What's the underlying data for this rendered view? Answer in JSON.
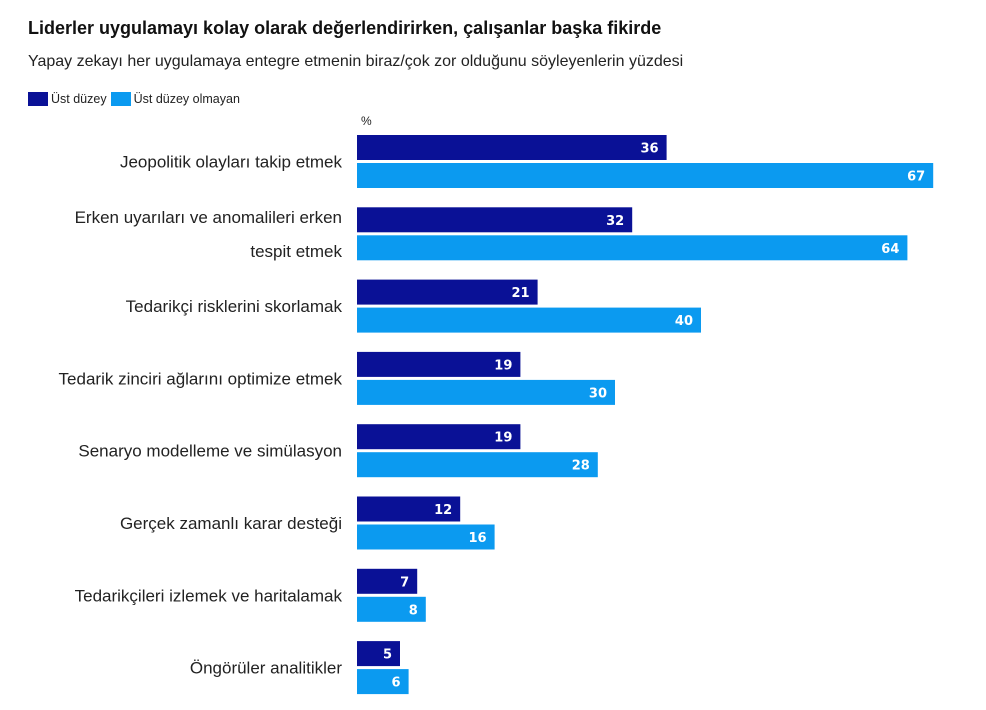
{
  "header": {
    "title": "Liderler uygulamayı kolay olarak değerlendirirken, çalışanlar başka fikirde",
    "subtitle": "Yapay zekayı her uygulamaya entegre etmenin biraz/çok zor olduğunu söyleyenlerin yüzdesi"
  },
  "legend": {
    "items": [
      {
        "label": "Üst düzey",
        "color": "#0a1196"
      },
      {
        "label": "Üst düzey olmayan",
        "color": "#0b9af0"
      }
    ]
  },
  "chart_data": {
    "type": "bar",
    "orientation": "horizontal",
    "title": "Liderler uygulamayı kolay olarak değerlendirirken, çalışanlar başka fikirde",
    "subtitle": "Yapay zekayı her uygulamaya entegre etmenin biraz/çok zor olduğunu söyleyenlerin yüzdesi",
    "unit_label": "%",
    "xlim": [
      0,
      70
    ],
    "grid": false,
    "legend_position": "top-left",
    "categories": [
      [
        "Jeopolitik olayları takip etmek"
      ],
      [
        "Erken uyarıları ve anomalileri erken",
        "tespit etmek"
      ],
      [
        "Tedarikçi risklerini skorlamak"
      ],
      [
        "Tedarik zinciri ağlarını optimize etmek"
      ],
      [
        "Senaryo modelleme ve simülasyon"
      ],
      [
        "Gerçek zamanlı karar desteği"
      ],
      [
        "Tedarikçileri izlemek ve haritalamak"
      ],
      [
        "Öngörüler analitikler"
      ]
    ],
    "series": [
      {
        "name": "Üst düzey",
        "color": "#0a1196",
        "values": [
          36,
          32,
          21,
          19,
          19,
          12,
          7,
          5
        ]
      },
      {
        "name": "Üst düzey olmayan",
        "color": "#0b9af0",
        "values": [
          67,
          64,
          40,
          30,
          28,
          16,
          8,
          6
        ]
      }
    ]
  }
}
